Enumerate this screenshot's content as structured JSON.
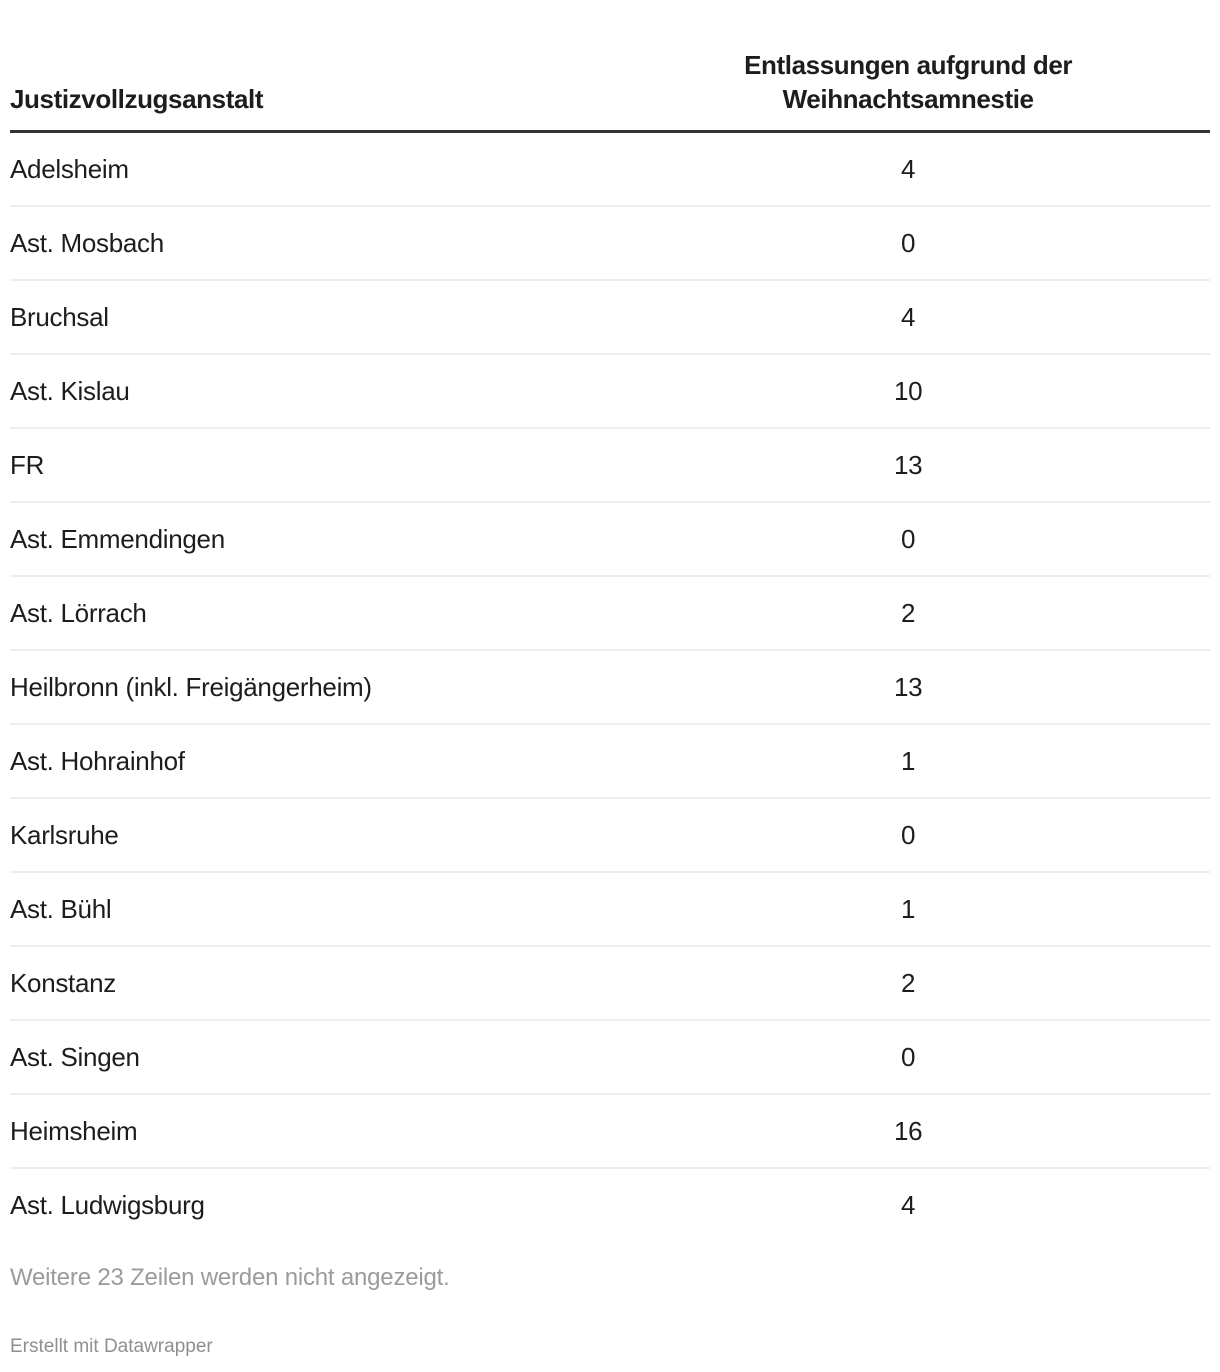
{
  "chart_data": {
    "type": "table",
    "columns": [
      "Justizvollzugsanstalt",
      "Entlassungen aufgrund der Weihnachtsamnestie"
    ],
    "rows": [
      {
        "name": "Adelsheim",
        "value": 4
      },
      {
        "name": "Ast. Mosbach",
        "value": 0
      },
      {
        "name": "Bruchsal",
        "value": 4
      },
      {
        "name": "Ast. Kislau",
        "value": 10
      },
      {
        "name": "FR",
        "value": 13
      },
      {
        "name": "Ast. Emmendingen",
        "value": 0
      },
      {
        "name": "Ast. Lörrach",
        "value": 2
      },
      {
        "name": "Heilbronn (inkl. Freigängerheim)",
        "value": 13
      },
      {
        "name": "Ast. Hohrainhof",
        "value": 1
      },
      {
        "name": "Karlsruhe",
        "value": 0
      },
      {
        "name": "Ast. Bühl",
        "value": 1
      },
      {
        "name": "Konstanz",
        "value": 2
      },
      {
        "name": "Ast. Singen",
        "value": 0
      },
      {
        "name": "Heimsheim",
        "value": 16
      },
      {
        "name": "Ast. Ludwigsburg",
        "value": 4
      }
    ],
    "hidden_rows_note": "Weitere 23 Zeilen werden nicht angezeigt.",
    "hidden_rows_count": 23,
    "attribution": "Erstellt mit Datawrapper",
    "layout_hints": {
      "value_column_align": "center",
      "name_column_align": "left",
      "grid": "horizontal-row-separators-only"
    }
  },
  "colors": {
    "background": "#ffffff",
    "text": "#1d1d1d",
    "header_rule": "#333333",
    "row_separator": "#eeeeee",
    "note_text": "#9b9b9b",
    "attribution_text": "#8f8f8f"
  }
}
